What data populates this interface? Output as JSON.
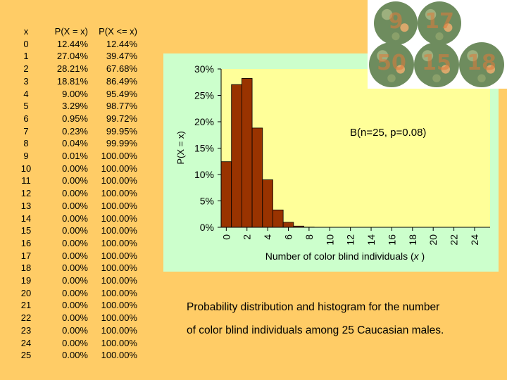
{
  "table": {
    "headers": [
      "x",
      "P(X = x)",
      "P(X <= x)"
    ],
    "rows": [
      [
        "0",
        "12.44%",
        "12.44%"
      ],
      [
        "1",
        "27.04%",
        "39.47%"
      ],
      [
        "2",
        "28.21%",
        "67.68%"
      ],
      [
        "3",
        "18.81%",
        "86.49%"
      ],
      [
        "4",
        "9.00%",
        "95.49%"
      ],
      [
        "5",
        "3.29%",
        "98.77%"
      ],
      [
        "6",
        "0.95%",
        "99.72%"
      ],
      [
        "7",
        "0.23%",
        "99.95%"
      ],
      [
        "8",
        "0.04%",
        "99.99%"
      ],
      [
        "9",
        "0.01%",
        "100.00%"
      ],
      [
        "10",
        "0.00%",
        "100.00%"
      ],
      [
        "11",
        "0.00%",
        "100.00%"
      ],
      [
        "12",
        "0.00%",
        "100.00%"
      ],
      [
        "13",
        "0.00%",
        "100.00%"
      ],
      [
        "14",
        "0.00%",
        "100.00%"
      ],
      [
        "15",
        "0.00%",
        "100.00%"
      ],
      [
        "16",
        "0.00%",
        "100.00%"
      ],
      [
        "17",
        "0.00%",
        "100.00%"
      ],
      [
        "18",
        "0.00%",
        "100.00%"
      ],
      [
        "19",
        "0.00%",
        "100.00%"
      ],
      [
        "20",
        "0.00%",
        "100.00%"
      ],
      [
        "21",
        "0.00%",
        "100.00%"
      ],
      [
        "22",
        "0.00%",
        "100.00%"
      ],
      [
        "23",
        "0.00%",
        "100.00%"
      ],
      [
        "24",
        "0.00%",
        "100.00%"
      ],
      [
        "25",
        "0.00%",
        "100.00%"
      ]
    ]
  },
  "chart_data": {
    "type": "bar",
    "annotation": "B(n=25, p=0.08)",
    "xlabel_main": "Number of color blind individuals (",
    "xlabel_var": "x",
    "xlabel_end": " )",
    "ylabel": "P(X = x)",
    "ylim": [
      0,
      0.3
    ],
    "yticks": [
      0,
      0.05,
      0.1,
      0.15,
      0.2,
      0.25,
      0.3
    ],
    "ytick_labels": [
      "0%",
      "5%",
      "10%",
      "15%",
      "20%",
      "25%",
      "30%"
    ],
    "xticks": [
      "0",
      "2",
      "4",
      "6",
      "8",
      "10",
      "12",
      "14",
      "16",
      "18",
      "20",
      "22",
      "24"
    ],
    "x": [
      0,
      1,
      2,
      3,
      4,
      5,
      6,
      7,
      8,
      9,
      10,
      11,
      12,
      13,
      14,
      15,
      16,
      17,
      18,
      19,
      20,
      21,
      22,
      23,
      24,
      25
    ],
    "values": [
      0.1244,
      0.2704,
      0.2821,
      0.1881,
      0.09,
      0.0329,
      0.0095,
      0.0023,
      0.0004,
      0.0001,
      0,
      0,
      0,
      0,
      0,
      0,
      0,
      0,
      0,
      0,
      0,
      0,
      0,
      0,
      0,
      0
    ],
    "colors": {
      "plot_bg": "#FFFF99",
      "panel_bg": "#CCFFCC",
      "bar_fill": "#993300",
      "bar_stroke": "#000000"
    },
    "grid": false
  },
  "plates": {
    "numerals": [
      "9",
      "17",
      "50",
      "15",
      "18"
    ],
    "colors": {
      "bg": "#FFFFFF",
      "dots": "#6E8C5E",
      "figure": "#E07A3A"
    }
  },
  "caption": {
    "line1": "Probability distribution and histogram for the number",
    "line2": "of color blind individuals among 25 Caucasian males."
  },
  "colors": {
    "page_bg": "#FFCC66"
  }
}
